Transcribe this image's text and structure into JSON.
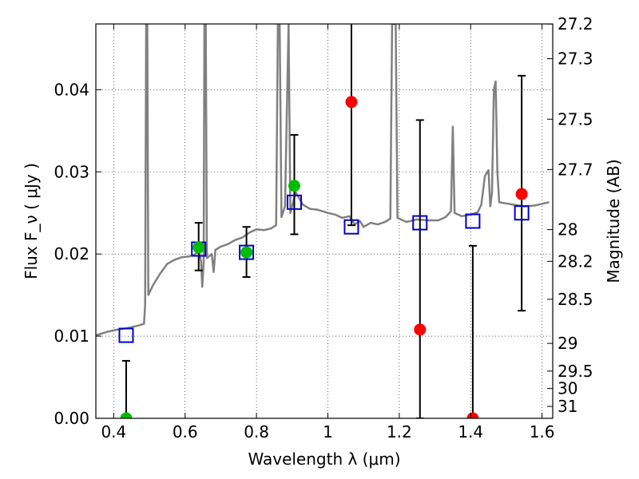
{
  "chart_data": {
    "type": "scatter",
    "title": "",
    "xlabel": "Wavelength  λ (μm)",
    "ylabel": "Flux  F_ν  ( μJy )",
    "ylabel_right": "Magnitude (AB)",
    "xlim": [
      0.35,
      1.63
    ],
    "ylim": [
      0.0,
      0.048
    ],
    "grid": true,
    "x_ticks": [
      0.4,
      0.6,
      0.8,
      1.0,
      1.2,
      1.4,
      1.6
    ],
    "x_tick_labels": [
      "0.4",
      "0.6",
      "0.8",
      "1",
      "1.2",
      "1.4",
      "1.6"
    ],
    "y_ticks": [
      0.0,
      0.01,
      0.02,
      0.03,
      0.04
    ],
    "y_tick_labels": [
      "0.00",
      "0.01",
      "0.02",
      "0.03",
      "0.04"
    ],
    "right_axis_ticks": [
      {
        "label": "27.2",
        "flux": 0.04799
      },
      {
        "label": "27.3",
        "flux": 0.04377
      },
      {
        "label": "27.5",
        "flux": 0.03641
      },
      {
        "label": "27.7",
        "flux": 0.03028
      },
      {
        "label": "28",
        "flux": 0.02297
      },
      {
        "label": "28.2",
        "flux": 0.01911
      },
      {
        "label": "28.5",
        "flux": 0.01449
      },
      {
        "label": "29",
        "flux": 0.00912
      },
      {
        "label": "29.5",
        "flux": 0.00575
      },
      {
        "label": "30",
        "flux": 0.00363
      },
      {
        "label": "31",
        "flux": 0.00145
      }
    ],
    "series": [
      {
        "role": "spectrum",
        "color": "#808080",
        "points": [
          [
            0.35,
            0.0101
          ],
          [
            0.38,
            0.0105
          ],
          [
            0.41,
            0.0108
          ],
          [
            0.44,
            0.011
          ],
          [
            0.47,
            0.0113
          ],
          [
            0.485,
            0.0115
          ],
          [
            0.488,
            0.0138
          ],
          [
            0.491,
            0.048
          ],
          [
            0.494,
            0.048
          ],
          [
            0.497,
            0.015
          ],
          [
            0.51,
            0.0162
          ],
          [
            0.53,
            0.0176
          ],
          [
            0.55,
            0.0188
          ],
          [
            0.57,
            0.0193
          ],
          [
            0.59,
            0.0196
          ],
          [
            0.61,
            0.0197
          ],
          [
            0.625,
            0.0199
          ],
          [
            0.64,
            0.0203
          ],
          [
            0.645,
            0.019
          ],
          [
            0.648,
            0.016
          ],
          [
            0.652,
            0.019
          ],
          [
            0.654,
            0.048
          ],
          [
            0.658,
            0.048
          ],
          [
            0.661,
            0.0195
          ],
          [
            0.675,
            0.02
          ],
          [
            0.68,
            0.0178
          ],
          [
            0.685,
            0.0205
          ],
          [
            0.7,
            0.0209
          ],
          [
            0.72,
            0.0212
          ],
          [
            0.74,
            0.0217
          ],
          [
            0.76,
            0.022
          ],
          [
            0.78,
            0.0226
          ],
          [
            0.8,
            0.023
          ],
          [
            0.82,
            0.0229
          ],
          [
            0.84,
            0.0231
          ],
          [
            0.855,
            0.0235
          ],
          [
            0.86,
            0.048
          ],
          [
            0.865,
            0.048
          ],
          [
            0.87,
            0.0245
          ],
          [
            0.88,
            0.0258
          ],
          [
            0.89,
            0.048
          ],
          [
            0.895,
            0.025
          ],
          [
            0.91,
            0.0275
          ],
          [
            0.93,
            0.026
          ],
          [
            0.95,
            0.0255
          ],
          [
            0.97,
            0.0254
          ],
          [
            1.0,
            0.025
          ],
          [
            1.02,
            0.0248
          ],
          [
            1.04,
            0.0244
          ],
          [
            1.06,
            0.0246
          ],
          [
            1.075,
            0.0236
          ],
          [
            1.09,
            0.024
          ],
          [
            1.1,
            0.0233
          ],
          [
            1.12,
            0.0238
          ],
          [
            1.14,
            0.0236
          ],
          [
            1.16,
            0.0239
          ],
          [
            1.175,
            0.0243
          ],
          [
            1.18,
            0.048
          ],
          [
            1.19,
            0.048
          ],
          [
            1.195,
            0.0244
          ],
          [
            1.22,
            0.0239
          ],
          [
            1.25,
            0.0242
          ],
          [
            1.28,
            0.0241
          ],
          [
            1.31,
            0.0241
          ],
          [
            1.33,
            0.0245
          ],
          [
            1.345,
            0.0252
          ],
          [
            1.35,
            0.0355
          ],
          [
            1.355,
            0.025
          ],
          [
            1.375,
            0.0246
          ],
          [
            1.4,
            0.0248
          ],
          [
            1.42,
            0.0251
          ],
          [
            1.43,
            0.026
          ],
          [
            1.44,
            0.0295
          ],
          [
            1.45,
            0.0302
          ],
          [
            1.455,
            0.0258
          ],
          [
            1.46,
            0.0275
          ],
          [
            1.465,
            0.04
          ],
          [
            1.47,
            0.041
          ],
          [
            1.475,
            0.03
          ],
          [
            1.48,
            0.0263
          ],
          [
            1.52,
            0.026
          ],
          [
            1.55,
            0.0258
          ],
          [
            1.58,
            0.0259
          ],
          [
            1.62,
            0.0263
          ]
        ]
      },
      {
        "role": "model-boxes",
        "color": "#0000cc",
        "x": [
          0.435,
          0.638,
          0.772,
          0.906,
          1.066,
          1.258,
          1.406,
          1.543
        ],
        "y": [
          0.0101,
          0.0206,
          0.0202,
          0.0263,
          0.0233,
          0.0238,
          0.024,
          0.025
        ]
      },
      {
        "role": "detections",
        "color": "#00bb00",
        "x": [
          0.435,
          0.638,
          0.772,
          0.906
        ],
        "y": [
          0.0,
          0.0208,
          0.0202,
          0.0283
        ],
        "err_low": [
          0.0,
          0.018,
          0.0172,
          0.0224
        ],
        "err_high": [
          0.007,
          0.0238,
          0.0233,
          0.0345
        ]
      },
      {
        "role": "low-significance",
        "color": "#ff0000",
        "x": [
          1.066,
          1.258,
          1.406,
          1.543
        ],
        "y": [
          0.0385,
          0.0108,
          0.0,
          0.0273
        ],
        "err_low": [
          0.0235,
          0.0,
          0.0,
          0.0131
        ],
        "err_high": [
          0.051,
          0.0363,
          0.021,
          0.0417
        ]
      }
    ]
  }
}
